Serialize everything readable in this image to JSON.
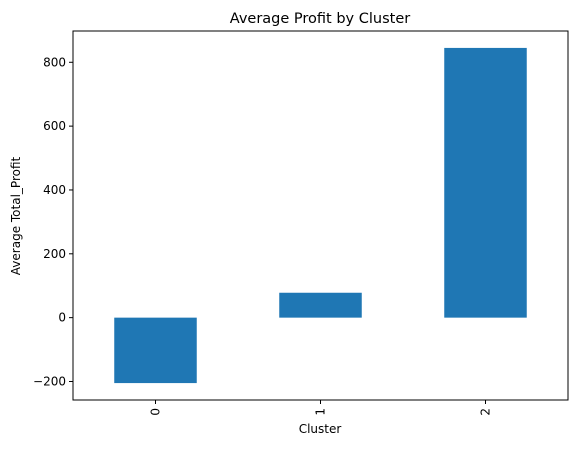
{
  "chart_data": {
    "type": "bar",
    "title": "Average Profit by Cluster",
    "xlabel": "Cluster",
    "ylabel": "Average Total_Profit",
    "categories": [
      "0",
      "1",
      "2"
    ],
    "values": [
      -205,
      78,
      845
    ],
    "ylim": [
      -258,
      898
    ],
    "yticks": [
      -200,
      0,
      200,
      400,
      600,
      800
    ],
    "ytick_labels": [
      "−200",
      "0",
      "200",
      "400",
      "600",
      "800"
    ],
    "grid": false,
    "legend": "none",
    "bar_color": "#1f77b4"
  }
}
